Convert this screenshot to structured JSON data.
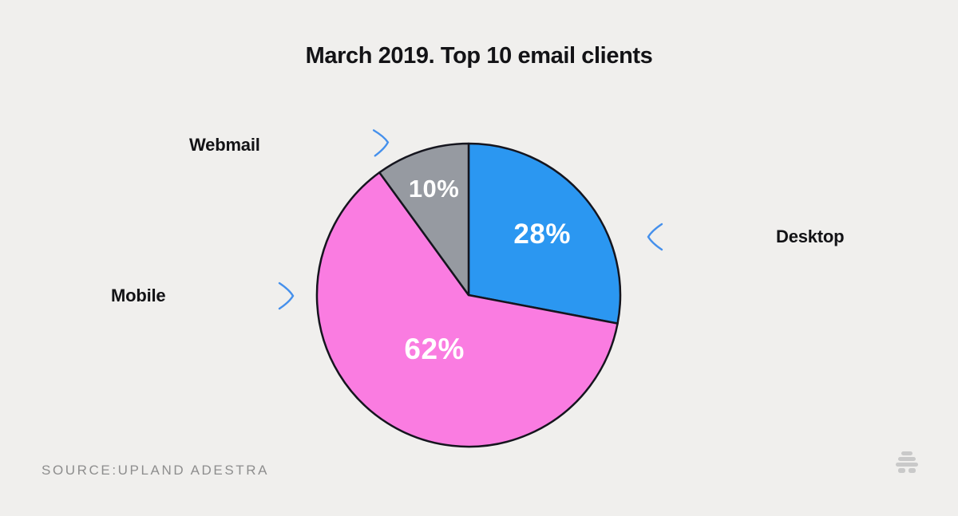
{
  "title": "March 2019. Top 10 email clients",
  "source": "SOURCE:UPLAND ADESTRA",
  "watermark_icon": "beehive-logo",
  "style": {
    "background": "#f0efed",
    "title_color": "#131316",
    "arrow_purple": "#b06fc6",
    "arrow_blue": "#4590ec",
    "source_color": "#8e8e8e",
    "logo_color": "#c9c9c9"
  },
  "chart_data": {
    "type": "pie",
    "title": "March 2019. Top 10 email clients",
    "categories": [
      "Desktop",
      "Mobile",
      "Webmail"
    ],
    "values": [
      28,
      62,
      10
    ],
    "unit": "%",
    "start_angle_deg": 0,
    "direction": "clockwise",
    "legend_position": "external-callouts",
    "outline_color": "#15151e",
    "value_label_color": "#ffffff",
    "slices": [
      {
        "label": "Desktop",
        "value": 28,
        "percent_label": "28%",
        "color": "#2b97f1",
        "label_radius": 0.63,
        "label_size": 35
      },
      {
        "label": "Mobile",
        "value": 62,
        "percent_label": "62%",
        "color": "#fa7ce1",
        "label_radius": 0.42,
        "label_size": 37
      },
      {
        "label": "Webmail",
        "value": 10,
        "percent_label": "10%",
        "color": "#969aa1",
        "label_radius": 0.74,
        "label_size": 31
      }
    ]
  }
}
